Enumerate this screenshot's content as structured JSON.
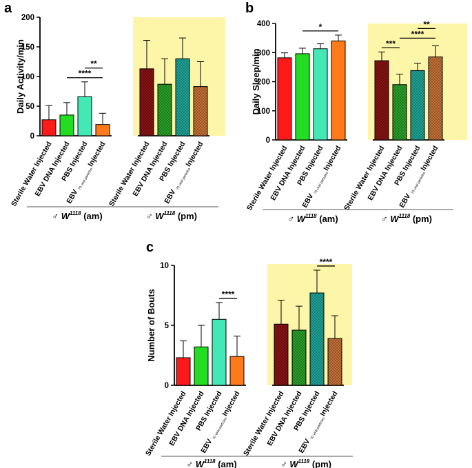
{
  "chart_data": [
    {
      "panel": "a",
      "type": "bar",
      "ylabel": "Daily Activity/min",
      "ylim": [
        0,
        200
      ],
      "yticks": [
        0,
        50,
        100,
        150,
        200
      ],
      "highlight_color": "#fdf6a8",
      "categories": [
        "Sterile Water Injected",
        "EBV DNA Injected",
        "PBS Injected",
        "EBV 70 viral particles Injected"
      ],
      "groups": [
        {
          "label": "W1118 (am)",
          "sex": "♂",
          "name": "W",
          "sup": "1118",
          "suffix": " (am)",
          "values": [
            27,
            35,
            66,
            19
          ],
          "errors": [
            24,
            21,
            25,
            19
          ]
        },
        {
          "label": "W1118 (pm)",
          "sex": "♂",
          "name": "W",
          "sup": "1118",
          "suffix": " (pm)",
          "values": [
            113,
            87,
            130,
            83
          ],
          "errors": [
            48,
            43,
            35,
            42
          ]
        }
      ],
      "colors": [
        "#ff1a1a",
        "#22dd22",
        "#44e8b4",
        "#ff7a1a"
      ],
      "pm_colors": [
        "#8b1414",
        "#1f8f1f",
        "#1b8f86",
        "#b0622a"
      ],
      "significance": [
        {
          "group": 0,
          "from": 1,
          "to": 3,
          "label": "****"
        },
        {
          "group": 0,
          "from": 2,
          "to": 3,
          "label": "**"
        }
      ]
    },
    {
      "panel": "b",
      "type": "bar",
      "ylabel": "Daily Sleep/min",
      "ylim": [
        0,
        400
      ],
      "yticks": [
        0,
        100,
        200,
        300,
        400
      ],
      "highlight_color": "#fdf6a8",
      "categories": [
        "Sterile Water Injected",
        "EBV DNA Injected",
        "PBS Injected",
        "EBV 70 viral particles Injected"
      ],
      "groups": [
        {
          "label": "W1118 (am)",
          "sex": "♂",
          "name": "W",
          "sup": "1118",
          "suffix": " (am)",
          "values": [
            282,
            296,
            313,
            340
          ],
          "errors": [
            17,
            19,
            17,
            20
          ]
        },
        {
          "label": "W1118 (pm)",
          "sex": "♂",
          "name": "W",
          "sup": "1118",
          "suffix": " (pm)",
          "values": [
            272,
            190,
            238,
            285
          ],
          "errors": [
            30,
            36,
            25,
            38
          ]
        }
      ],
      "colors": [
        "#ff1a1a",
        "#22dd22",
        "#44e8b4",
        "#ff7a1a"
      ],
      "pm_colors": [
        "#8b1414",
        "#1f8f1f",
        "#1b8f86",
        "#b0622a"
      ],
      "significance": [
        {
          "group": 0,
          "from": 1,
          "to": 3,
          "label": "*"
        },
        {
          "group": 1,
          "from": 0,
          "to": 1,
          "label": "***"
        },
        {
          "group": 1,
          "from": 1,
          "to": 3,
          "label": "****"
        },
        {
          "group": 1,
          "from": 2,
          "to": 3,
          "label": "**"
        }
      ]
    },
    {
      "panel": "c",
      "type": "bar",
      "ylabel": "Number of Bouts",
      "ylim": [
        0,
        10
      ],
      "yticks": [
        0,
        5,
        10
      ],
      "highlight_color": "#fdf6a8",
      "categories": [
        "Sterile Water Injected",
        "EBV DNA Injected",
        "PBS Injected",
        "EBV 70 viral particles Injected"
      ],
      "groups": [
        {
          "label": "W1118 (am)",
          "sex": "♂",
          "name": "W",
          "sup": "1118",
          "suffix": " (am)",
          "values": [
            2.3,
            3.2,
            5.5,
            2.4
          ],
          "errors": [
            1.4,
            1.8,
            1.4,
            1.7
          ]
        },
        {
          "label": "W1118 (pm)",
          "sex": "♂",
          "name": "W",
          "sup": "1118",
          "suffix": " (pm)",
          "values": [
            5.1,
            4.6,
            7.7,
            3.9
          ],
          "errors": [
            2.0,
            2.0,
            1.9,
            1.9
          ]
        }
      ],
      "colors": [
        "#ff1a1a",
        "#22dd22",
        "#44e8b4",
        "#ff7a1a"
      ],
      "pm_colors": [
        "#8b1414",
        "#1f8f1f",
        "#1b8f86",
        "#b0622a"
      ],
      "significance": [
        {
          "group": 0,
          "from": 2,
          "to": 3,
          "label": "****"
        },
        {
          "group": 1,
          "from": 2,
          "to": 3,
          "label": "****"
        }
      ]
    }
  ],
  "tick_label_main": {
    "sterile": "Sterile Water Injected",
    "ebv_dna": "EBV DNA Injected",
    "pbs": "PBS Injected",
    "ebv_viral_prefix": "EBV",
    "ebv_viral_sub": "70 viral particles",
    "ebv_viral_suffix": "Injected"
  }
}
